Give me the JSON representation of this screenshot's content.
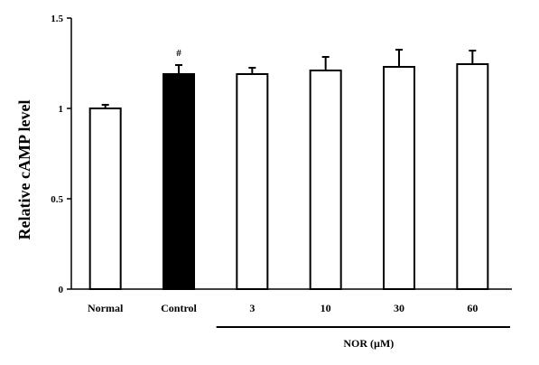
{
  "chart_data": {
    "type": "bar",
    "ylabel": "Relative cAMP level",
    "ylim": [
      0,
      1.5
    ],
    "yticks": [
      "0",
      "0.5",
      "1",
      "1.5"
    ],
    "categories": [
      "Normal",
      "Control",
      "3",
      "10",
      "30",
      "60"
    ],
    "values": [
      1.0,
      1.19,
      1.19,
      1.21,
      1.23,
      1.245
    ],
    "errors": [
      0.02,
      0.05,
      0.035,
      0.075,
      0.095,
      0.075
    ],
    "bar_fill": [
      "#ffffff",
      "#000000",
      "#ffffff",
      "#ffffff",
      "#ffffff",
      "#ffffff"
    ],
    "annotations": [
      {
        "category": "Control",
        "text": "#"
      }
    ],
    "group_label": {
      "text": "NOR (µM)",
      "categories": [
        "3",
        "10",
        "30",
        "60"
      ]
    },
    "grid": false,
    "legend": "none"
  }
}
